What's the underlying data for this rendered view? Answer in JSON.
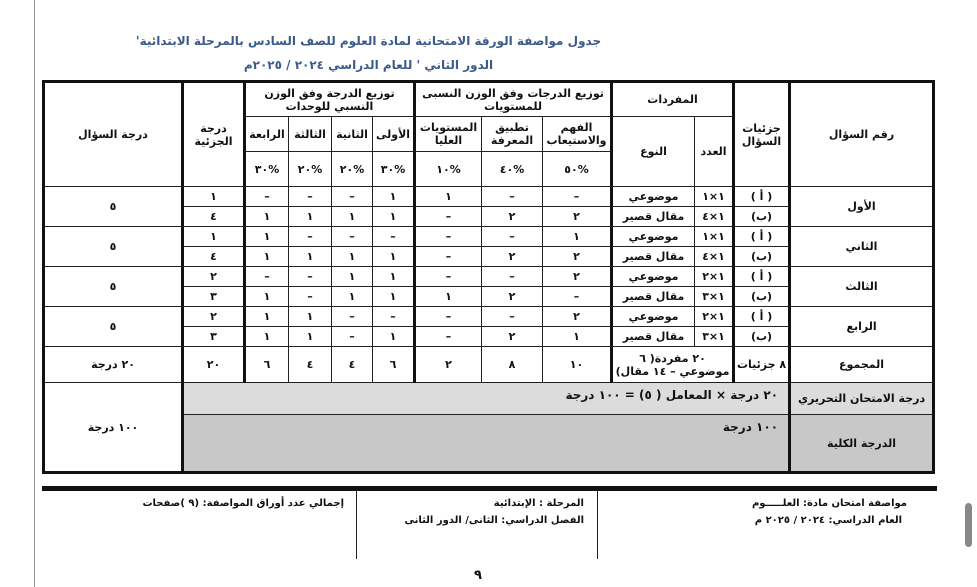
{
  "title": "جدول مواصفة الورقة الامتحانية لمادة العلوم للصف السادس  بالمرحلة الابتدائية'",
  "subtitle": "الدور الثاني ' للعام الدراسي ٢٠٢٤ / ٢٠٢٥م",
  "headers": {
    "question_no": "رقم السؤال",
    "parts": "جزئيات السؤال",
    "items": "المفردات",
    "count": "العدد",
    "type": "النوع",
    "levels_group": "توزيع الدرجات وفق الوزن النسبى للمستويات",
    "levels": [
      "الفهم والاستيعاب",
      "تطبيق المعرفة",
      "المستويات العليا"
    ],
    "levels_pct": [
      "%٥٠",
      "%٤٠",
      "%١٠"
    ],
    "units_group": "توزيع الدرجة وفق الوزن النسبي للوحدات",
    "units": [
      "الأولى",
      "الثانية",
      "الثالثة",
      "الرابعة"
    ],
    "units_pct": [
      "%٣٠",
      "%٢٠",
      "%٢٠",
      "%٣٠"
    ],
    "part_grade": "درجة الجزئية",
    "question_grade": "درجة السؤال"
  },
  "questions": [
    {
      "name": "الأول",
      "grade": "٥",
      "parts": [
        {
          "label": "( أ )",
          "count": "١×١",
          "type": "موضوعي",
          "levels": [
            "–",
            "–",
            "١"
          ],
          "units": [
            "١",
            "–",
            "–",
            "–"
          ],
          "part_grade": "١"
        },
        {
          "label": "(ب)",
          "count": "١×٤",
          "type": "مقال قصير",
          "levels": [
            "٢",
            "٢",
            "–"
          ],
          "units": [
            "١",
            "١",
            "١",
            "١"
          ],
          "part_grade": "٤"
        }
      ]
    },
    {
      "name": "الثاني",
      "grade": "٥",
      "parts": [
        {
          "label": "( أ )",
          "count": "١×١",
          "type": "موضوعي",
          "levels": [
            "١",
            "–",
            "–"
          ],
          "units": [
            "–",
            "–",
            "–",
            "١"
          ],
          "part_grade": "١"
        },
        {
          "label": "(ب)",
          "count": "١×٤",
          "type": "مقال قصير",
          "levels": [
            "٢",
            "٢",
            "–"
          ],
          "units": [
            "١",
            "١",
            "١",
            "١"
          ],
          "part_grade": "٤"
        }
      ]
    },
    {
      "name": "الثالث",
      "grade": "٥",
      "parts": [
        {
          "label": "( أ )",
          "count": "١×٢",
          "type": "موضوعي",
          "levels": [
            "٢",
            "–",
            "–"
          ],
          "units": [
            "١",
            "١",
            "–",
            "–"
          ],
          "part_grade": "٢"
        },
        {
          "label": "(ب)",
          "count": "١×٣",
          "type": "مقال قصير",
          "levels": [
            "–",
            "٢",
            "١"
          ],
          "units": [
            "١",
            "١",
            "–",
            "١"
          ],
          "part_grade": "٣"
        }
      ]
    },
    {
      "name": "الرابع",
      "grade": "٥",
      "parts": [
        {
          "label": "( أ )",
          "count": "١×٢",
          "type": "موضوعي",
          "levels": [
            "٢",
            "–",
            "–"
          ],
          "units": [
            "–",
            "–",
            "١",
            "١"
          ],
          "part_grade": "٢"
        },
        {
          "label": "(ب)",
          "count": "١×٣",
          "type": "مقال قصير",
          "levels": [
            "١",
            "٢",
            "–"
          ],
          "units": [
            "١",
            "–",
            "١",
            "١"
          ],
          "part_grade": "٣"
        }
      ]
    }
  ],
  "total": {
    "label": "المجموع",
    "parts": "٨ جزئيات",
    "items": "٢٠ مفردة( ٦ موضوعي – ١٤ مقال)",
    "levels": [
      "١٠",
      "٨",
      "٢"
    ],
    "units": [
      "٦",
      "٤",
      "٤",
      "٦"
    ],
    "part_grade": "٢٠",
    "grade": "٢٠ درجة"
  },
  "written": {
    "label": "درجة الامتحان التحريري",
    "value": "٢٠ درجة  × المعامل ( ٥) = ١٠٠ درجة"
  },
  "overall": {
    "label": "الدرجة الكلية",
    "value": "١٠٠  درجة",
    "grade": "١٠٠ درجة"
  },
  "footer": {
    "subject": "مواصفة امتحان مادة: العلـــــوم",
    "year": "العام الدراسي: ٢٠٢٤ / ٢٠٢٥ م",
    "stage": "المرحلة :  الإبتدائية",
    "term": "الفصل الدراسي:  الثانى/ الدور الثانى",
    "pages": "إجمالي عدد أوراق المواصفة: (٩ )صفحات"
  },
  "page_number": "٩"
}
